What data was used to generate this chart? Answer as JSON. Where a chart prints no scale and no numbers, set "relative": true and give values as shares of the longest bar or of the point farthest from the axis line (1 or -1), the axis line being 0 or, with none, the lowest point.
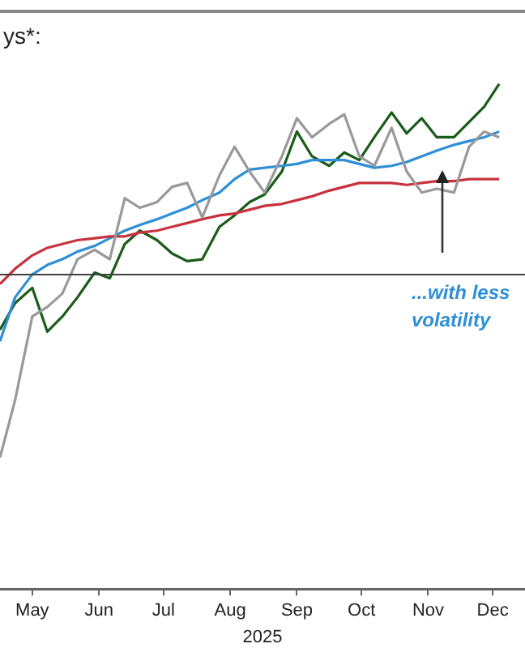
{
  "chart_data": {
    "type": "line",
    "title": "ys*:",
    "xlabel": "2025",
    "relative": true,
    "legend": false,
    "grid": false,
    "marker": "none",
    "line_style": "solid",
    "x": [
      "2025-05-01",
      "2025-05-08",
      "2025-05-16",
      "2025-05-23",
      "2025-05-30",
      "2025-06-06",
      "2025-06-14",
      "2025-06-21",
      "2025-06-28",
      "2025-07-05",
      "2025-07-13",
      "2025-07-20",
      "2025-07-27",
      "2025-08-03",
      "2025-08-11",
      "2025-08-18",
      "2025-08-25",
      "2025-09-01",
      "2025-09-09",
      "2025-09-16",
      "2025-09-23",
      "2025-10-01",
      "2025-10-08",
      "2025-10-15",
      "2025-10-22",
      "2025-10-30",
      "2025-11-06",
      "2025-11-13",
      "2025-11-20",
      "2025-11-28",
      "2025-12-05",
      "2025-12-12",
      "2025-12-19"
    ],
    "xlim": [
      "2025-05-01",
      "2025-12-31"
    ],
    "xticks": [
      {
        "value": "2025-05-16",
        "label": "May"
      },
      {
        "value": "2025-06-16",
        "label": "Jun"
      },
      {
        "value": "2025-07-16",
        "label": "Jul"
      },
      {
        "value": "2025-08-16",
        "label": "Aug"
      },
      {
        "value": "2025-09-16",
        "label": "Sep"
      },
      {
        "value": "2025-10-16",
        "label": "Oct"
      },
      {
        "value": "2025-11-16",
        "label": "Nov"
      },
      {
        "value": "2025-12-16",
        "label": "Dec"
      }
    ],
    "series": [
      {
        "color": "#999999",
        "values": [
          -0.96,
          -0.66,
          -0.22,
          -0.17,
          -0.1,
          0.08,
          0.13,
          0.08,
          0.4,
          0.35,
          0.38,
          0.46,
          0.48,
          0.3,
          0.52,
          0.67,
          0.54,
          0.43,
          0.62,
          0.82,
          0.72,
          0.79,
          0.84,
          0.62,
          0.57,
          0.77,
          0.54,
          0.43,
          0.45,
          0.43,
          0.67,
          0.75,
          0.72
        ]
      },
      {
        "color": "#c8323c",
        "values": [
          -0.05,
          0.03,
          0.1,
          0.14,
          0.16,
          0.18,
          0.19,
          0.2,
          0.2,
          0.22,
          0.23,
          0.25,
          0.27,
          0.29,
          0.31,
          0.32,
          0.34,
          0.36,
          0.37,
          0.39,
          0.41,
          0.44,
          0.46,
          0.48,
          0.48,
          0.48,
          0.47,
          0.48,
          0.49,
          0.49,
          0.5,
          0.5,
          0.5
        ]
      },
      {
        "color": "#2e8fd6",
        "values": [
          -0.35,
          -0.12,
          0,
          0.05,
          0.08,
          0.12,
          0.15,
          0.19,
          0.23,
          0.26,
          0.29,
          0.32,
          0.35,
          0.39,
          0.43,
          0.5,
          0.55,
          0.56,
          0.57,
          0.58,
          0.6,
          0.6,
          0.6,
          0.58,
          0.56,
          0.57,
          0.59,
          0.62,
          0.65,
          0.68,
          0.7,
          0.72,
          0.75
        ]
      },
      {
        "color": "#1a5c1a",
        "values": [
          -0.29,
          -0.15,
          -0.07,
          -0.3,
          -0.22,
          -0.12,
          0.01,
          -0.02,
          0.16,
          0.23,
          0.18,
          0.11,
          0.07,
          0.08,
          0.25,
          0.31,
          0.38,
          0.42,
          0.54,
          0.75,
          0.62,
          0.57,
          0.64,
          0.6,
          0.72,
          0.85,
          0.74,
          0.82,
          0.72,
          0.72,
          0.8,
          0.88,
          1.0
        ]
      }
    ],
    "ref_lines": [
      {
        "axis": "y",
        "value": 0,
        "color": "#404040"
      }
    ],
    "annotations": [
      "...with less volatility"
    ]
  }
}
